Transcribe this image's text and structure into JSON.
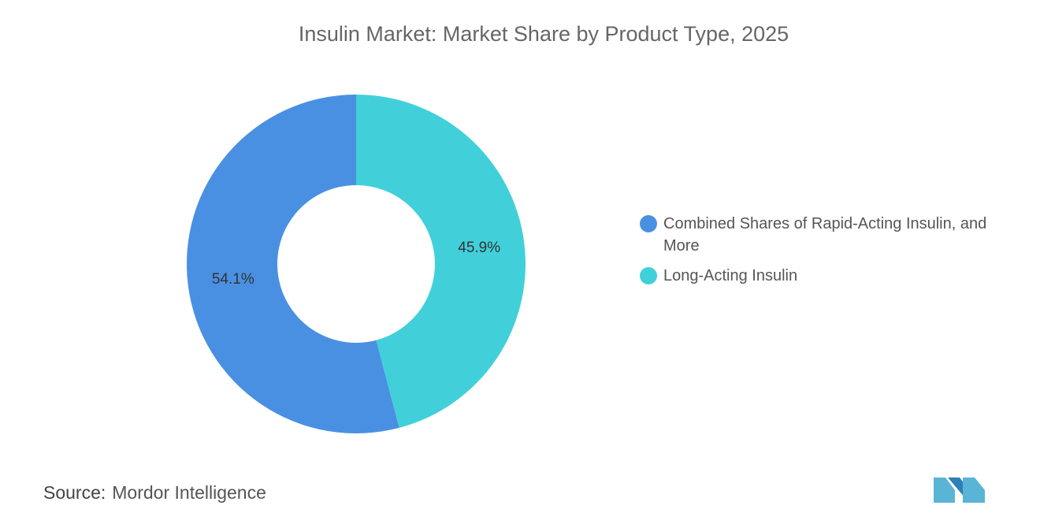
{
  "chart_data": {
    "type": "pie",
    "donut": true,
    "title": "Insulin Market: Market Share by Product Type, 2025",
    "categories": [
      "Combined Shares of Rapid-Acting Insulin, and More",
      "Long-Acting Insulin"
    ],
    "values": [
      54.1,
      45.9
    ],
    "value_labels": [
      "54.1%",
      "45.9%"
    ],
    "colors": [
      "#4a90e2",
      "#41d0da"
    ],
    "legend": "right"
  },
  "source": {
    "label": "Source:",
    "text": "Mordor Intelligence"
  }
}
